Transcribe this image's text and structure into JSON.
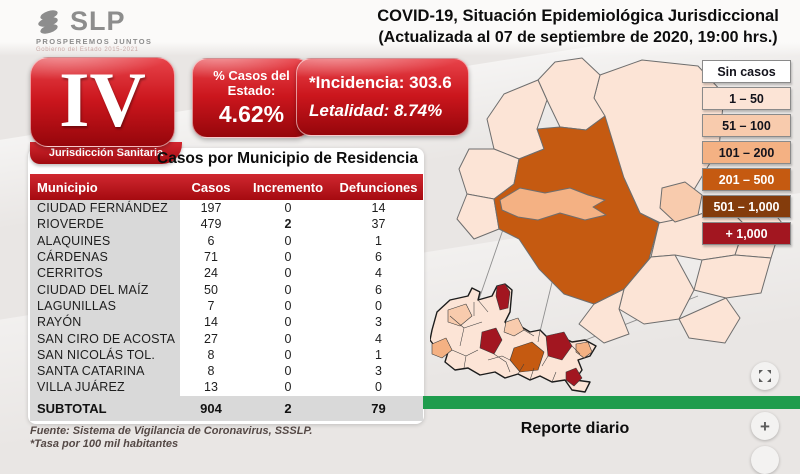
{
  "brand": {
    "name": "SLP",
    "tagline": "PROSPEREMOS JUNTOS",
    "government": "Gobierno del Estado 2015-2021"
  },
  "title": {
    "line1": "COVID-19, Situación Epidemiológica Jurisdiccional",
    "line2": "(Actualizada al 07 de septiembre de 2020, 19:00 hrs.)"
  },
  "jurisdiction": {
    "roman": "IV",
    "label": "Jurisdicción Sanitaria"
  },
  "stats": {
    "state_share_label_1": "% Casos del",
    "state_share_label_2": "Estado:",
    "state_share_value": "4.62%",
    "incidence": "*Incidencia: 303.6",
    "lethality": "Letalidad: 8.74%"
  },
  "table": {
    "title": "Casos por Municipio  de Residencia",
    "columns": [
      "Municipio",
      "Casos",
      "Incremento",
      "Defunciones"
    ],
    "rows": [
      {
        "municipio": "CIUDAD FERNÁNDEZ",
        "casos": "197",
        "incremento": "0",
        "defunciones": "14"
      },
      {
        "municipio": "RIOVERDE",
        "casos": "479",
        "incremento": "2",
        "defunciones": "37",
        "bold_incremento": true
      },
      {
        "municipio": "ALAQUINES",
        "casos": "6",
        "incremento": "0",
        "defunciones": "1"
      },
      {
        "municipio": "CÁRDENAS",
        "casos": "71",
        "incremento": "0",
        "defunciones": "6"
      },
      {
        "municipio": "CERRITOS",
        "casos": "24",
        "incremento": "0",
        "defunciones": "4"
      },
      {
        "municipio": "CIUDAD DEL MAÍZ",
        "casos": "50",
        "incremento": "0",
        "defunciones": "6"
      },
      {
        "municipio": "LAGUNILLAS",
        "casos": "7",
        "incremento": "0",
        "defunciones": "0"
      },
      {
        "municipio": "RAYÓN",
        "casos": "14",
        "incremento": "0",
        "defunciones": "3"
      },
      {
        "municipio": "SAN CIRO DE ACOSTA",
        "casos": "27",
        "incremento": "0",
        "defunciones": "4"
      },
      {
        "municipio": "SAN NICOLÁS TOL.",
        "casos": "8",
        "incremento": "0",
        "defunciones": "1"
      },
      {
        "municipio": "SANTA CATARINA",
        "casos": "8",
        "incremento": "0",
        "defunciones": "3"
      },
      {
        "municipio": "VILLA JUÁREZ",
        "casos": "13",
        "incremento": "0",
        "defunciones": "0"
      }
    ],
    "subtotal": {
      "municipio": "SUBTOTAL",
      "casos": "904",
      "incremento": "2",
      "defunciones": "79"
    }
  },
  "footnotes": {
    "source": "Fuente: Sistema de Vigilancia de Coronavirus, SSSLP.",
    "rate_note": "*Tasa por 100 mil habitantes"
  },
  "legend": {
    "items": [
      {
        "label": "Sin casos",
        "color": "#ffffff",
        "text_color": "#13131c"
      },
      {
        "label": "1 – 50",
        "color": "#fce4d6",
        "text_color": "#13131c"
      },
      {
        "label": "51 – 100",
        "color": "#f8cbad",
        "text_color": "#13131c"
      },
      {
        "label": "101 – 200",
        "color": "#f4b183",
        "text_color": "#13131c"
      },
      {
        "label": "201 – 500",
        "color": "#c55a11",
        "text_color": "#ffffff"
      },
      {
        "label": "501 – 1,000",
        "color": "#843c0c",
        "text_color": "#ffffff"
      },
      {
        "label": "+ 1,000",
        "color": "#a21620",
        "text_color": "#ffffff"
      }
    ],
    "palette": {
      "none": "#ffffff",
      "r1_50": "#fce4d6",
      "r51_100": "#f8cbad",
      "r101_200": "#f4b183",
      "r201_500": "#c55a11",
      "r501_1000": "#843c0c",
      "r1000plus": "#a21620"
    }
  },
  "map": {
    "caption": "Reporte diario"
  },
  "controls": {
    "zoom_in_label": "+"
  }
}
